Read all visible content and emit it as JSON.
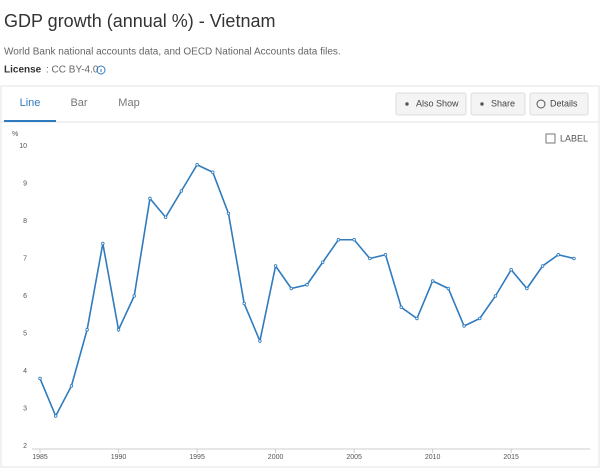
{
  "header": {
    "title": "GDP growth (annual %) - Vietnam",
    "source": "World Bank national accounts data, and OECD National Accounts data files.",
    "license_label": "License",
    "license_value": ": CC BY-4.0"
  },
  "tabs": [
    "Line",
    "Bar",
    "Map"
  ],
  "buttons": [
    "Also Show",
    "Share",
    "Details"
  ],
  "label_toggle": "LABEL",
  "chart_data": {
    "type": "line",
    "y_label": "%",
    "color": "#2f7bbd",
    "grid": false,
    "x": [
      1985,
      1986,
      1987,
      1988,
      1989,
      1990,
      1991,
      1992,
      1993,
      1994,
      1995,
      1996,
      1997,
      1998,
      1999,
      2000,
      2001,
      2002,
      2003,
      2004,
      2005,
      2006,
      2007,
      2008,
      2009,
      2010,
      2011,
      2012,
      2013,
      2014,
      2015,
      2016,
      2017,
      2018,
      2019
    ],
    "values": [
      3.8,
      2.8,
      3.6,
      5.1,
      7.4,
      5.1,
      6.0,
      8.6,
      8.1,
      8.8,
      9.5,
      9.3,
      8.2,
      5.8,
      4.8,
      6.8,
      6.2,
      6.3,
      6.9,
      7.5,
      7.5,
      7.0,
      7.1,
      5.7,
      5.4,
      6.4,
      6.2,
      5.2,
      5.4,
      6.0,
      6.7,
      6.2,
      6.8,
      7.1,
      7.0
    ],
    "xlim": [
      1985,
      2019
    ],
    "xticks": [
      1985,
      1990,
      1995,
      2000,
      2005,
      2010,
      2015
    ],
    "ylim": [
      2,
      10
    ],
    "yticks": [
      2,
      3,
      4,
      5,
      6,
      7,
      8,
      9,
      10
    ]
  }
}
